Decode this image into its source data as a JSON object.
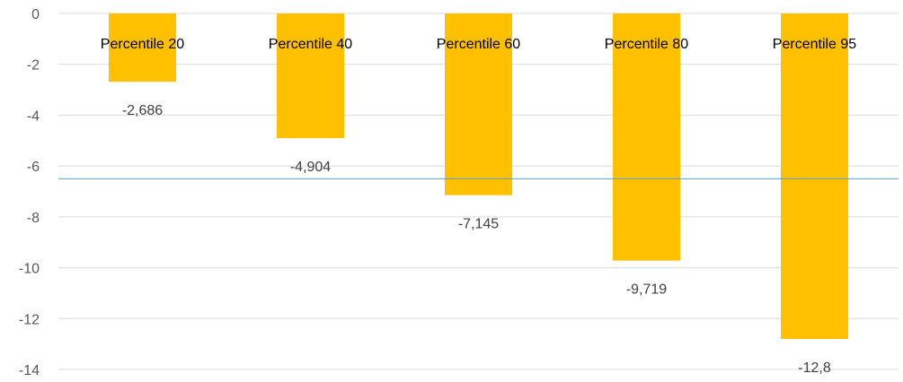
{
  "chart_data": {
    "type": "bar",
    "orientation": "vertical",
    "categories": [
      "Percentile 20",
      "Percentile 40",
      "Percentile 60",
      "Percentile 80",
      "Percentile 95"
    ],
    "values": [
      -2.686,
      -4.904,
      -7.145,
      -9.719,
      -12.8
    ],
    "data_labels": [
      "-2,686",
      "-4,904",
      "-7,145",
      "-9,719",
      "-12,8"
    ],
    "yticks": [
      0,
      -2,
      -4,
      -6,
      -8,
      -10,
      -12,
      -14
    ],
    "ylim": [
      -14,
      0
    ],
    "reference_line": {
      "y": -6.5,
      "color": "#5b9bd5"
    },
    "category_label_position": "top",
    "grid": true,
    "legend": "none",
    "title": "",
    "xlabel": "",
    "ylabel": "",
    "colors": {
      "bar": "#ffc000",
      "grid": "#d9d9d9",
      "reference_line": "#5b9bd5"
    }
  }
}
